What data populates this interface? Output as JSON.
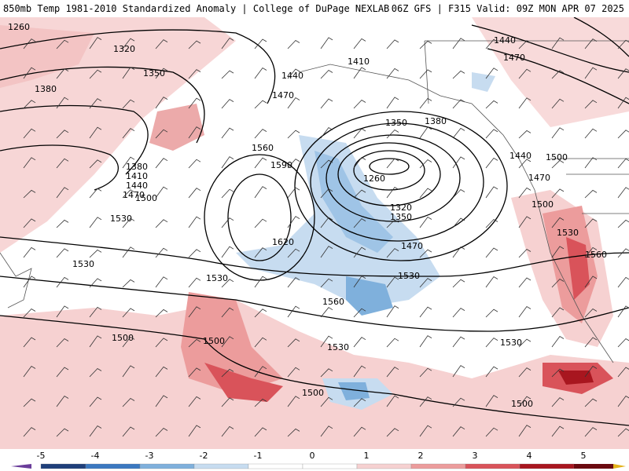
{
  "header": {
    "title_left": "850mb Temp 1981-2010 Standardized Anomaly | College of DuPage NEXLAB",
    "title_right": "06Z GFS | F315 Valid: 09Z MON APR 07 2025"
  },
  "map": {
    "contour_labels": [
      "1260",
      "1320",
      "1350",
      "1380",
      "1410",
      "1440",
      "1470",
      "1500",
      "1530",
      "1560",
      "1590",
      "1620"
    ],
    "highs_lows": {
      "low_center": "1260",
      "high_center": "1620"
    }
  },
  "colorbar": {
    "ticks": [
      "-5",
      "-4",
      "-3",
      "-2",
      "-1",
      "0",
      "1",
      "2",
      "3",
      "4",
      "5"
    ],
    "colors": {
      "neg5": "#6a3d9a",
      "neg4": "#1f3f7a",
      "neg3": "#3b78c0",
      "neg2": "#7fb0dc",
      "neg1": "#c7dcf0",
      "zero": "#ffffff",
      "pos1": "#f6d1d1",
      "pos2": "#ec9c9c",
      "pos3": "#d9535a",
      "pos4": "#a8161f",
      "pos5": "#6b0a10",
      "end": "#e3b21b"
    }
  }
}
